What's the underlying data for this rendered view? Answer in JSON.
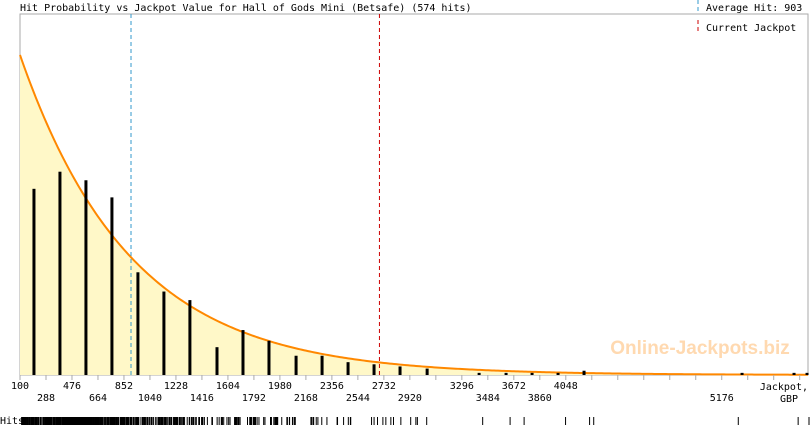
{
  "chart_data": {
    "type": "bar",
    "title": "Hit Probability vs Jackpot Value for Hall of Gods Mini (Betsafe) (574 hits)",
    "xlabel": "Jackpot, GBP",
    "xlabel_parts": [
      "Jackpot,",
      "GBP"
    ],
    "rug_label": "Hits",
    "xlim": [
      100,
      5800
    ],
    "x_ticks_top": [
      "100",
      "476",
      "852",
      "1228",
      "1604",
      "1980",
      "2356",
      "2732",
      "3296",
      "3672",
      "4048"
    ],
    "x_ticks_top_values": [
      100,
      476,
      852,
      1228,
      1604,
      1980,
      2356,
      2732,
      3296,
      3672,
      4048
    ],
    "x_ticks_bottom": [
      "288",
      "664",
      "1040",
      "1416",
      "1792",
      "2168",
      "2544",
      "2920",
      "3484",
      "3860",
      "5176"
    ],
    "x_ticks_bottom_values": [
      288,
      664,
      1040,
      1416,
      1792,
      2168,
      2544,
      2920,
      3484,
      3860,
      5176
    ],
    "bin_width": 188,
    "bars": {
      "x": [
        201,
        389,
        577,
        765,
        953,
        1141,
        1329,
        1525,
        1713,
        1901,
        2097,
        2285,
        2473,
        2661,
        2849,
        3045,
        3421,
        3616,
        3804,
        3992,
        4180,
        5323,
        5699,
        5793
      ],
      "values": [
        87,
        95,
        91,
        83,
        48,
        39,
        35,
        13,
        21,
        16,
        9,
        9,
        6,
        5,
        4,
        3,
        1,
        1,
        1,
        1,
        2,
        1,
        1,
        1
      ]
    },
    "fit_curve": {
      "type": "exponential",
      "start": 100,
      "mean": 903,
      "peak": 149
    },
    "average_hit": {
      "label": "Average Hit: 903",
      "value": 903,
      "color": "#3399cc"
    },
    "current_jackpot": {
      "label": "Current Jackpot",
      "value": 2700,
      "color": "#cc0000"
    },
    "watermark": "Online-Jackpots.biz",
    "colors": {
      "fill": "#fff8c8",
      "curve": "#ff8800",
      "bars": "#000000",
      "axis": "#aaaaaa",
      "watermark": "#ffd9b0"
    },
    "grid": false
  }
}
